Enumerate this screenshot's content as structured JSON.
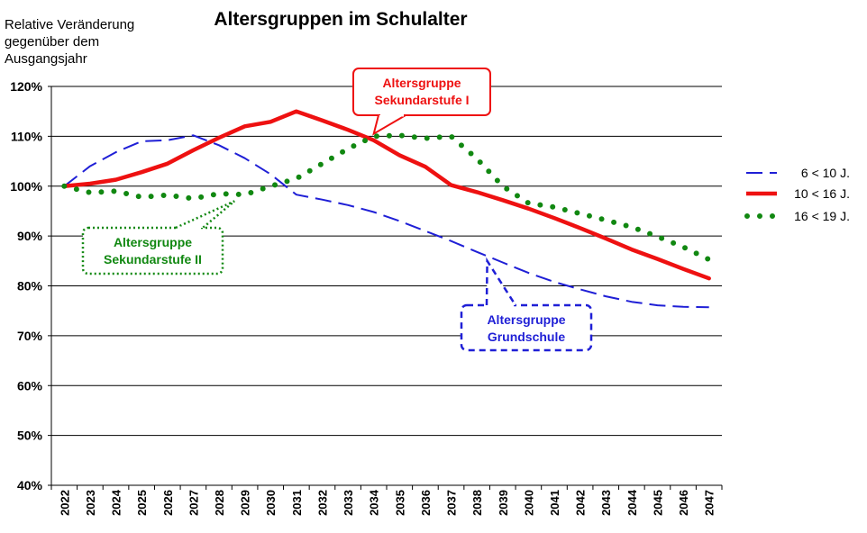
{
  "chart_data": {
    "type": "line",
    "title": "Altersgruppen im Schulalter",
    "ylabel_lines": [
      "Relative Veränderung",
      "gegenüber dem",
      "Ausgangsjahr"
    ],
    "ylim": [
      40,
      120
    ],
    "yticks": [
      40,
      50,
      60,
      70,
      80,
      90,
      100,
      110,
      120
    ],
    "ytick_labels": [
      "40%",
      "50%",
      "60%",
      "70%",
      "80%",
      "90%",
      "100%",
      "110%",
      "120%"
    ],
    "grid": true,
    "legend_position": "right",
    "categories": [
      "2022",
      "2023",
      "2024",
      "2025",
      "2026",
      "2027",
      "2028",
      "2029",
      "2030",
      "2031",
      "2032",
      "2033",
      "2034",
      "2035",
      "2036",
      "2037",
      "2038",
      "2039",
      "2040",
      "2041",
      "2042",
      "2043",
      "2044",
      "2045",
      "2046",
      "2047"
    ],
    "series": [
      {
        "name": "6 < 10 J.",
        "color": "#1f1fd6",
        "style": "dashed",
        "values": [
          100,
          104,
          106.8,
          109,
          109.2,
          110.2,
          108.2,
          105.6,
          102.4,
          98.3,
          97.3,
          96.2,
          94.8,
          93,
          91,
          89,
          86.8,
          84.7,
          82.6,
          80.8,
          79.3,
          77.9,
          76.8,
          76.1,
          75.8,
          75.7
        ]
      },
      {
        "name": "10 < 16 J.",
        "color": "#ee1111",
        "style": "solid",
        "values": [
          100,
          100.5,
          101.3,
          102.8,
          104.5,
          107.2,
          109.7,
          112,
          112.9,
          115,
          113.2,
          111.3,
          109.2,
          106.2,
          103.9,
          100.2,
          98.8,
          97.2,
          95.5,
          93.6,
          91.6,
          89.5,
          87.3,
          85.4,
          83.4,
          81.5
        ]
      },
      {
        "name": "16 < 19 J.",
        "color": "#118811",
        "style": "dotted",
        "values": [
          100,
          98.7,
          99,
          97.8,
          98.2,
          97.5,
          98.5,
          98.3,
          100,
          101.5,
          104.5,
          107.5,
          110,
          110.2,
          109.6,
          110,
          105.5,
          100,
          96.6,
          95.8,
          94.5,
          93.2,
          91.8,
          89.9,
          87.8,
          85.3
        ]
      }
    ],
    "annotations": [
      {
        "id": "sek1",
        "lines": [
          "Altersgruppe",
          "Sekundarstufe I"
        ],
        "color": "#ee1111",
        "border": "solid",
        "points_to_series": "10 < 16 J."
      },
      {
        "id": "sek2",
        "lines": [
          "Altersgruppe",
          "Sekundarstufe II"
        ],
        "color": "#118811",
        "border": "dotted",
        "points_to_series": "16 < 19 J."
      },
      {
        "id": "grund",
        "lines": [
          "Altersgruppe",
          "Grundschule"
        ],
        "color": "#1f1fd6",
        "border": "dashed",
        "points_to_series": "6 < 10 J."
      }
    ]
  }
}
